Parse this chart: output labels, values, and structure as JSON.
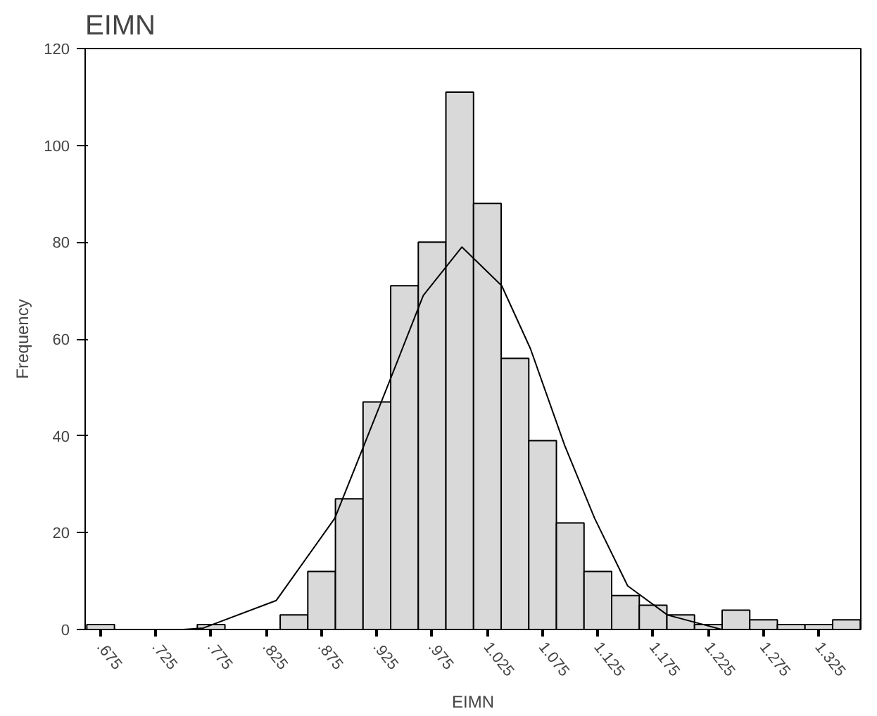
{
  "chart_data": {
    "type": "histogram",
    "title": "EIMN",
    "xlabel": "EIMN",
    "ylabel": "Frequency",
    "bins": [
      0.6625,
      0.6875,
      0.7125,
      0.7375,
      0.7625,
      0.7875,
      0.8125,
      0.8375,
      0.8625,
      0.8875,
      0.9125,
      0.9375,
      0.9625,
      0.9875,
      1.0125,
      1.0375,
      1.0625,
      1.0875,
      1.1125,
      1.1375,
      1.1625,
      1.1875,
      1.2125,
      1.2375,
      1.2625,
      1.2875,
      1.3125,
      1.3375,
      1.3625
    ],
    "values": [
      1,
      0,
      0,
      0,
      1,
      0,
      0,
      3,
      12,
      27,
      47,
      71,
      80,
      111,
      88,
      56,
      39,
      22,
      12,
      7,
      5,
      3,
      1,
      4,
      2,
      1,
      1,
      2
    ],
    "color": "#d9d9d9",
    "series": [
      {
        "type": "line",
        "color": "#000000",
        "x": [
          0.75,
          0.768,
          0.834,
          0.887,
          0.936,
          0.967,
          1.002,
          1.038,
          1.064,
          1.095,
          1.122,
          1.152,
          1.188,
          1.237,
          1.28
        ],
        "values": [
          0,
          0.3,
          6,
          23,
          51,
          69,
          79,
          71,
          58,
          38,
          23,
          9,
          3,
          0,
          0
        ]
      }
    ],
    "xlim": [
      0.661,
      1.363
    ],
    "ylim": [
      0,
      120
    ],
    "xticks": [
      {
        "value": 0.675,
        "label": ".675"
      },
      {
        "value": 0.725,
        "label": ".725"
      },
      {
        "value": 0.775,
        "label": ".775"
      },
      {
        "value": 0.825,
        "label": ".825"
      },
      {
        "value": 0.875,
        "label": ".875"
      },
      {
        "value": 0.925,
        "label": ".925"
      },
      {
        "value": 0.975,
        "label": ".975"
      },
      1.025,
      1.075,
      1.125,
      1.175,
      1.225,
      1.275,
      1.325
    ],
    "yticks": [
      0,
      20,
      40,
      60,
      80,
      100,
      120
    ],
    "grid": false
  }
}
